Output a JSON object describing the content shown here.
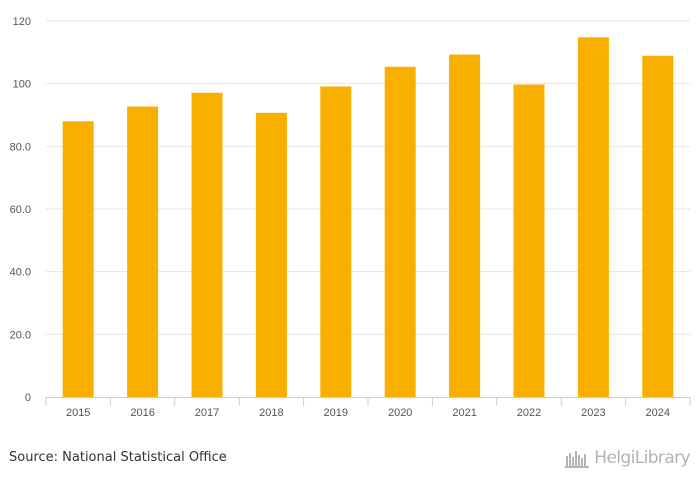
{
  "chart_data": {
    "type": "bar",
    "categories": [
      "2015",
      "2016",
      "2017",
      "2018",
      "2019",
      "2020",
      "2021",
      "2022",
      "2023",
      "2024"
    ],
    "values": [
      88.0,
      92.7,
      97.1,
      90.7,
      99.1,
      105.4,
      109.3,
      99.7,
      114.8,
      108.9
    ],
    "y_ticks": [
      "0",
      "20.0",
      "40.0",
      "60.0",
      "80.0",
      "100",
      "120"
    ],
    "ylim": [
      0,
      120
    ],
    "grid": true,
    "bar_color": "#F9AF00",
    "grid_color": "#e6e6e6",
    "axis_color": "#cccccc"
  },
  "footer": {
    "source": "Source: National Statistical Office",
    "brand": "HelgiLibrary"
  }
}
